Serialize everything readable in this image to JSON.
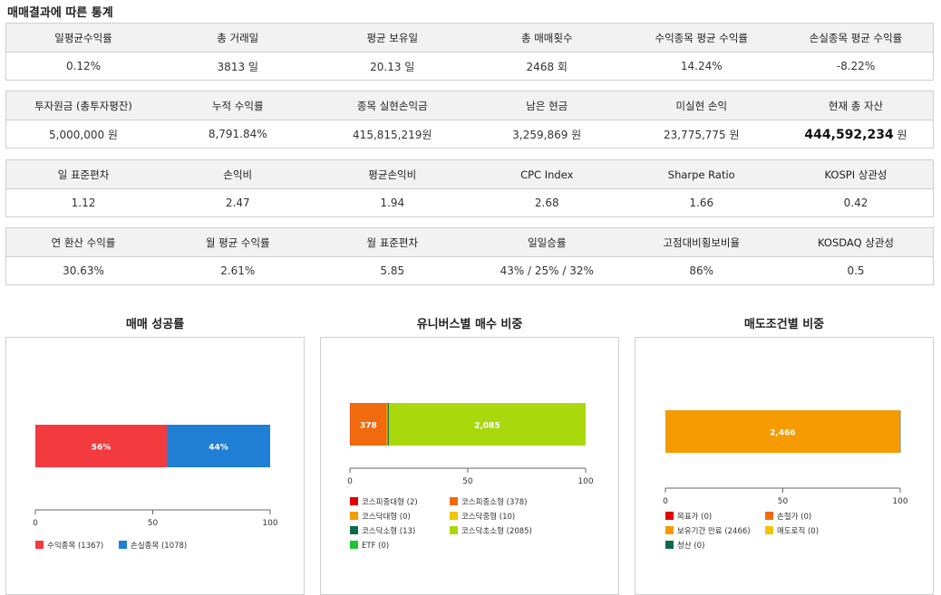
{
  "section_title": "매매결과에 따른 통계",
  "stats": [
    {
      "headers": [
        "일평균수익률",
        "총 거래일",
        "평균 보유일",
        "총 매매횟수",
        "수익종목 평균 수익률",
        "손실종목 평균 수익률"
      ],
      "values": [
        "0.12%",
        "3813 일",
        "20.13 일",
        "2468 회",
        "14.24%",
        "-8.22%"
      ]
    },
    {
      "headers": [
        "투자원금 (총투자평잔)",
        "누적 수익률",
        "종목 실현손익금",
        "남은 현금",
        "미실현 손익",
        "현재 총 자산"
      ],
      "values": [
        "5,000,000 원",
        "8,791.84%",
        "415,815,219원",
        "3,259,869 원",
        "23,775,775 원",
        "444,592,234"
      ],
      "total_asset_unit": "원"
    },
    {
      "headers": [
        "일 표준편차",
        "손익비",
        "평균손익비",
        "CPC Index",
        "Sharpe Ratio",
        "KOSPI 상관성"
      ],
      "values": [
        "1.12",
        "2.47",
        "1.94",
        "2.68",
        "1.66",
        "0.42"
      ]
    },
    {
      "headers": [
        "연 환산 수익률",
        "월 평균 수익률",
        "월 표준편차",
        "일일승률",
        "고점대비횡보비율",
        "KOSDAQ 상관성"
      ],
      "values": [
        "30.63%",
        "2.61%",
        "5.85",
        "43% / 25% / 32%",
        "86%",
        "0.5"
      ]
    }
  ],
  "colors": {
    "red": "#e8383d",
    "blue": "#3b74c5"
  },
  "chart_data": [
    {
      "type": "bar",
      "title": "매매 성공률",
      "orientation": "horizontal-stacked",
      "xlim": [
        0,
        100
      ],
      "ticks": [
        "0",
        "50",
        "100"
      ],
      "series": [
        {
          "name": "수익종목 (1367)",
          "value": 56,
          "label": "56%",
          "color": "#f23a3f"
        },
        {
          "name": "손실종목 (1078)",
          "value": 44,
          "label": "44%",
          "color": "#1e7fd4"
        }
      ]
    },
    {
      "type": "bar",
      "title": "유니버스별 매수 비중",
      "orientation": "horizontal-stacked",
      "xlim": [
        0,
        100
      ],
      "ticks": [
        "0",
        "50",
        "100"
      ],
      "series": [
        {
          "name": "코스피중대형 (2)",
          "value": 0.08,
          "label": "",
          "color": "#e00000"
        },
        {
          "name": "코스피중소형 (378)",
          "value": 15.5,
          "label": "378",
          "color": "#f26a0e"
        },
        {
          "name": "코스닥대형 (0)",
          "value": 0,
          "label": "",
          "color": "#f59a00"
        },
        {
          "name": "코스닥중형 (10)",
          "value": 0.41,
          "label": "",
          "color": "#f2c400"
        },
        {
          "name": "코스닥소형 (13)",
          "value": 0.53,
          "label": "",
          "color": "#0c6b4a"
        },
        {
          "name": "코스닥초소형 (2085)",
          "value": 83.48,
          "label": "2,085",
          "color": "#a9d80d"
        },
        {
          "name": "ETF (0)",
          "value": 0,
          "label": "",
          "color": "#1ec531"
        }
      ]
    },
    {
      "type": "bar",
      "title": "매도조건별 비중",
      "orientation": "horizontal-stacked",
      "xlim": [
        0,
        100
      ],
      "ticks": [
        "0",
        "50",
        "100"
      ],
      "series": [
        {
          "name": "목표가 (0)",
          "value": 0,
          "label": "",
          "color": "#e00000"
        },
        {
          "name": "손절가 (0)",
          "value": 0,
          "label": "",
          "color": "#f26a0e"
        },
        {
          "name": "보유기간 만료 (2466)",
          "value": 99.92,
          "label": "2,466",
          "color": "#f59a00"
        },
        {
          "name": "매도로직 (0)",
          "value": 0,
          "label": "",
          "color": "#f2c400"
        },
        {
          "name": "청산 (0)",
          "value": 0.08,
          "label": "",
          "color": "#0c6b4a"
        }
      ]
    }
  ]
}
